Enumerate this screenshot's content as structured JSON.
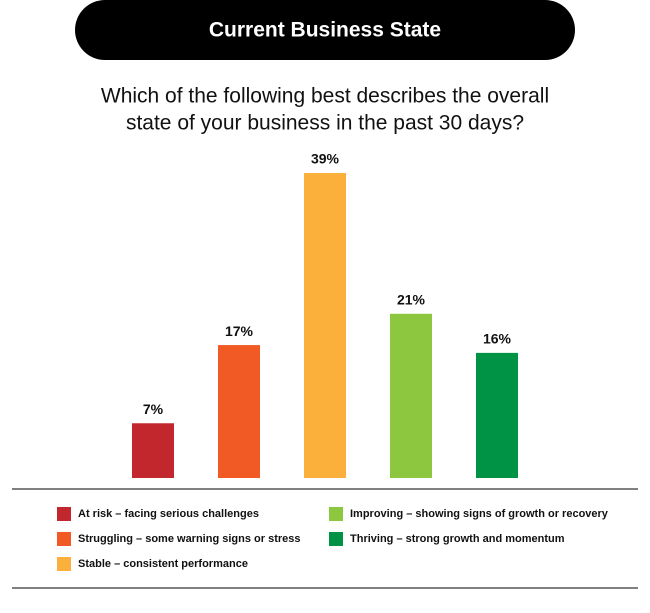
{
  "chart_data": {
    "type": "bar",
    "title": "Current Business State",
    "subtitle": [
      "Which of the following best describes the overall",
      "state of your business in the past 30 days?"
    ],
    "categories": [
      "At risk – facing serious challenges",
      "Struggling – some warning signs or stress",
      "Stable – consistent performance",
      "Improving – showing signs of growth or recovery",
      "Thriving – strong growth and momentum"
    ],
    "values": [
      7,
      17,
      39,
      21,
      16
    ],
    "value_labels": [
      "7%",
      "17%",
      "39%",
      "21%",
      "16%"
    ],
    "colors": [
      "#c1272d",
      "#f15a24",
      "#fbb03b",
      "#8dc63f",
      "#009245"
    ]
  }
}
